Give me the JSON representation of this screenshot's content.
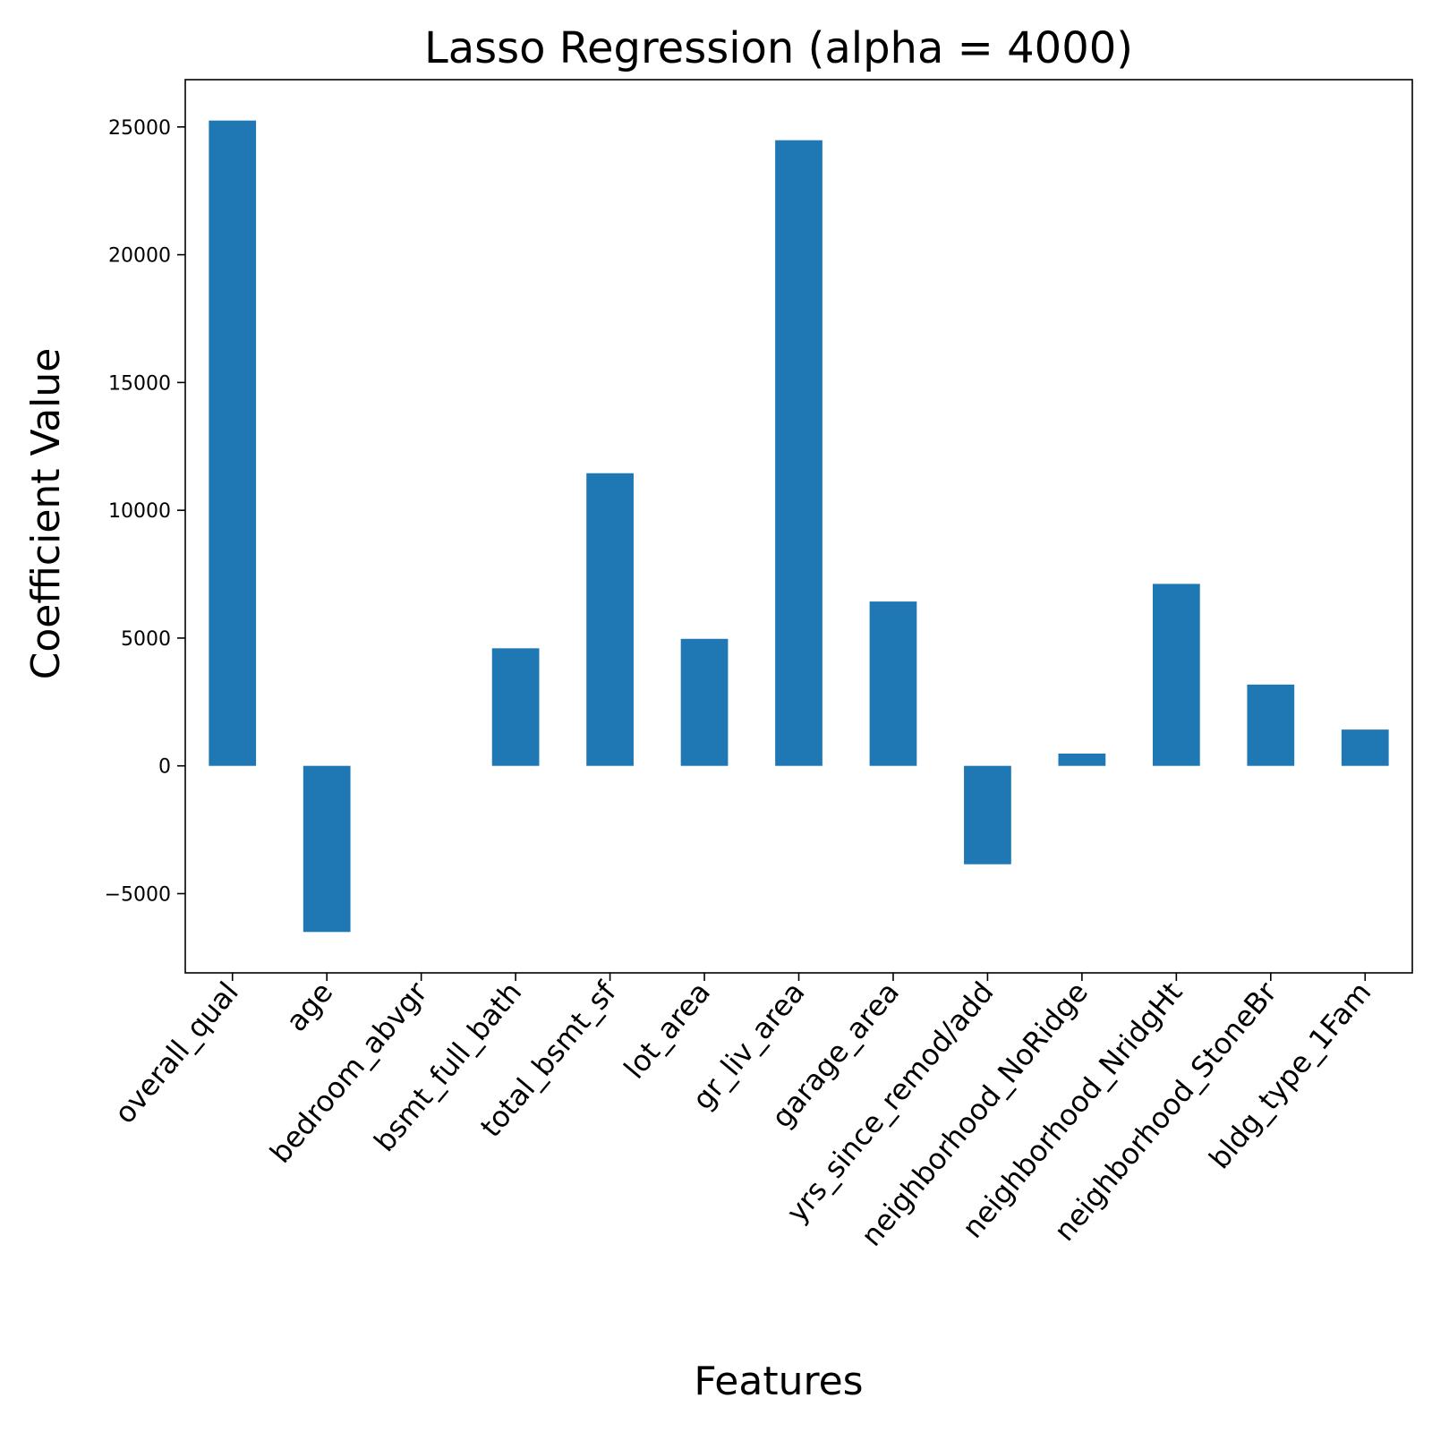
{
  "chart_data": {
    "type": "bar",
    "title": "Lasso Regression (alpha = 4000)",
    "xlabel": "Features",
    "ylabel": "Coefficient Value",
    "categories": [
      "overall_qual",
      "age",
      "bedroom_abvgr",
      "bsmt_full_bath",
      "total_bsmt_sf",
      "lot_area",
      "gr_liv_area",
      "garage_area",
      "yrs_since_remod/add",
      "neighborhood_NoRidge",
      "neighborhood_NridgHt",
      "neighborhood_StoneBr",
      "bldg_type_1Fam"
    ],
    "values": [
      25250,
      -6500,
      0,
      4600,
      11450,
      4970,
      24480,
      6430,
      -3850,
      480,
      7120,
      3180,
      1420
    ],
    "ylim": [
      -8100,
      26850
    ],
    "yticks": [
      -5000,
      0,
      5000,
      10000,
      15000,
      20000,
      25000
    ],
    "ytick_labels": [
      "−5000",
      "0",
      "5000",
      "10000",
      "15000",
      "20000",
      "25000"
    ],
    "grid": false,
    "bar_color": "#1f77b4"
  }
}
